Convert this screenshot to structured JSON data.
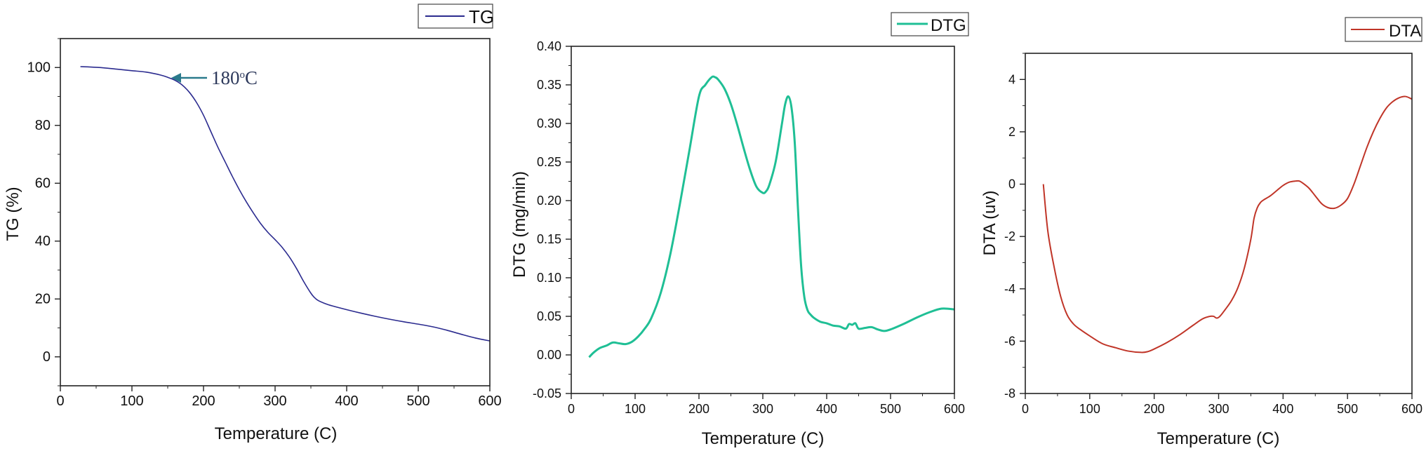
{
  "chart_data": [
    {
      "type": "line",
      "legend": "TG",
      "legend_position": "top-right",
      "xlabel": "Temperature (C)",
      "ylabel": "TG (%)",
      "xlim": [
        0,
        600
      ],
      "ylim": [
        -10,
        110
      ],
      "xticks": [
        0,
        100,
        200,
        300,
        400,
        500,
        600
      ],
      "yticks": [
        0,
        20,
        40,
        60,
        80,
        100
      ],
      "color": "#2b2b8f",
      "annotation": {
        "text": "180",
        "superscript": "o",
        "suffix": "C",
        "x": 160,
        "y": 96.5
      },
      "series": [
        {
          "x": [
            28,
            40,
            60,
            80,
            100,
            120,
            140,
            150,
            160,
            170,
            180,
            190,
            200,
            210,
            220,
            230,
            240,
            250,
            260,
            270,
            280,
            290,
            300,
            310,
            320,
            330,
            340,
            350,
            355,
            360,
            370,
            380,
            400,
            420,
            440,
            460,
            480,
            500,
            520,
            540,
            560,
            580,
            600
          ],
          "y": [
            100.3,
            100.2,
            99.9,
            99.4,
            98.9,
            98.4,
            97.4,
            96.6,
            95.6,
            94.0,
            91.5,
            88.0,
            83.5,
            78.0,
            72.5,
            67.5,
            62.5,
            57.8,
            53.5,
            49.6,
            46.0,
            43.0,
            40.5,
            37.8,
            34.5,
            30.5,
            26.0,
            22.0,
            20.5,
            19.5,
            18.4,
            17.6,
            16.3,
            15.1,
            14.0,
            13.0,
            12.1,
            11.3,
            10.4,
            9.2,
            7.8,
            6.5,
            5.5
          ]
        }
      ]
    },
    {
      "type": "line",
      "legend": "DTG",
      "legend_position": "top-right",
      "xlabel": "Temperature (C)",
      "ylabel": "DTG (mg/min)",
      "xlim": [
        0,
        600
      ],
      "ylim": [
        -0.05,
        0.4
      ],
      "xticks": [
        0,
        100,
        200,
        300,
        400,
        500,
        600
      ],
      "yticks": [
        "-0.05",
        "0.00",
        "0.05",
        "0.10",
        "0.15",
        "0.20",
        "0.25",
        "0.30",
        "0.35",
        "0.40"
      ],
      "color": "#1fbf95",
      "series": [
        {
          "x": [
            28,
            35,
            45,
            55,
            65,
            75,
            85,
            95,
            105,
            115,
            125,
            140,
            155,
            170,
            185,
            200,
            210,
            220,
            225,
            230,
            240,
            250,
            260,
            270,
            280,
            290,
            300,
            305,
            310,
            320,
            330,
            335,
            340,
            345,
            350,
            355,
            360,
            365,
            370,
            375,
            380,
            390,
            400,
            410,
            420,
            430,
            435,
            440,
            445,
            450,
            460,
            470,
            480,
            490,
            500,
            520,
            540,
            560,
            580,
            600
          ],
          "y": [
            -0.003,
            0.003,
            0.009,
            0.012,
            0.016,
            0.015,
            0.014,
            0.017,
            0.024,
            0.034,
            0.047,
            0.08,
            0.13,
            0.195,
            0.265,
            0.335,
            0.35,
            0.36,
            0.36,
            0.357,
            0.345,
            0.325,
            0.298,
            0.268,
            0.24,
            0.218,
            0.21,
            0.212,
            0.22,
            0.25,
            0.3,
            0.325,
            0.335,
            0.32,
            0.275,
            0.19,
            0.115,
            0.075,
            0.058,
            0.052,
            0.048,
            0.043,
            0.041,
            0.038,
            0.037,
            0.034,
            0.04,
            0.039,
            0.041,
            0.034,
            0.035,
            0.036,
            0.033,
            0.031,
            0.033,
            0.04,
            0.048,
            0.055,
            0.06,
            0.059
          ]
        }
      ]
    },
    {
      "type": "line",
      "legend": "DTA",
      "legend_position": "top-right",
      "xlabel": "Temperature (C)",
      "ylabel": "DTA (uv)",
      "xlim": [
        0,
        600
      ],
      "ylim": [
        -8,
        5
      ],
      "xticks": [
        0,
        100,
        200,
        300,
        400,
        500,
        600
      ],
      "yticks": [
        -8,
        -6,
        -4,
        -2,
        0,
        2,
        4
      ],
      "color": "#c03528",
      "series": [
        {
          "x": [
            28,
            35,
            45,
            55,
            65,
            75,
            85,
            100,
            120,
            140,
            160,
            180,
            190,
            200,
            220,
            240,
            260,
            275,
            285,
            292,
            297,
            302,
            310,
            320,
            330,
            340,
            350,
            355,
            360,
            365,
            370,
            380,
            390,
            400,
            410,
            420,
            425,
            430,
            440,
            450,
            460,
            470,
            480,
            490,
            500,
            510,
            520,
            530,
            540,
            550,
            560,
            570,
            580,
            590,
            600
          ],
          "y": [
            0.0,
            -1.8,
            -3.2,
            -4.3,
            -5.0,
            -5.35,
            -5.55,
            -5.8,
            -6.1,
            -6.25,
            -6.38,
            -6.43,
            -6.4,
            -6.3,
            -6.05,
            -5.75,
            -5.4,
            -5.15,
            -5.06,
            -5.05,
            -5.12,
            -5.05,
            -4.8,
            -4.45,
            -3.95,
            -3.2,
            -2.1,
            -1.3,
            -0.9,
            -0.7,
            -0.6,
            -0.45,
            -0.25,
            -0.05,
            0.08,
            0.12,
            0.12,
            0.05,
            -0.15,
            -0.45,
            -0.75,
            -0.9,
            -0.92,
            -0.8,
            -0.55,
            0.0,
            0.7,
            1.4,
            2.0,
            2.5,
            2.9,
            3.15,
            3.3,
            3.35,
            3.25
          ]
        }
      ]
    }
  ]
}
